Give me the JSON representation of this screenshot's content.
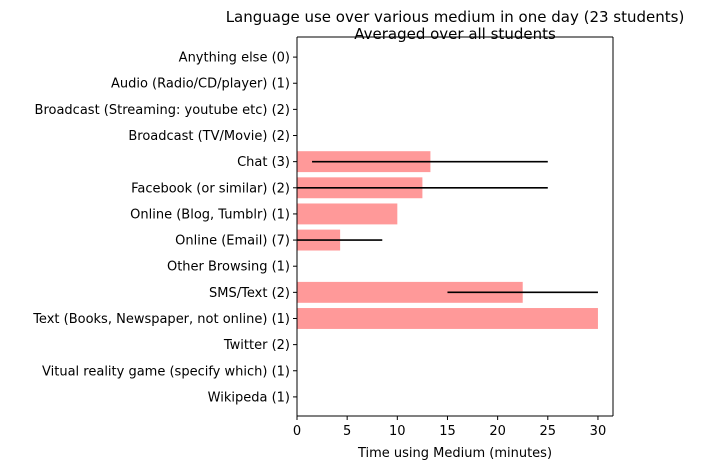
{
  "chart_data": {
    "type": "bar",
    "orientation": "horizontal",
    "title": "Language use over various medium in one day (23 students)",
    "subtitle": "Averaged over all students",
    "xlabel": "Time using Medium (minutes)",
    "ylabel": "",
    "xlim": [
      0,
      31.5
    ],
    "xticks": [
      "0",
      "5",
      "10",
      "15",
      "20",
      "25",
      "30"
    ],
    "grid": false,
    "categories": [
      "Anything else (0)",
      "Audio (Radio/CD/player) (1)",
      "Broadcast (Streaming: youtube etc) (2)",
      "Broadcast (TV/Movie) (2)",
      "Chat (3)",
      "Facebook (or similar) (2)",
      "Online (Blog, Tumblr) (1)",
      "Online (Email) (7)",
      "Other Browsing (1)",
      "SMS/Text (2)",
      "Text (Books, Newspaper, not online) (1)",
      "Twitter (2)",
      "Vitual reality game (specify which) (1)",
      "Wikipeda (1)"
    ],
    "values": [
      0,
      0,
      0,
      0,
      13.3,
      12.5,
      10,
      4.3,
      0,
      22.5,
      30,
      0,
      0,
      0
    ],
    "errors": [
      null,
      null,
      null,
      null,
      [
        1.5,
        25
      ],
      [
        0,
        25
      ],
      null,
      [
        0,
        8.5
      ],
      null,
      [
        15,
        30
      ],
      null,
      null,
      null,
      null
    ],
    "bar_color": "#ff9999",
    "error_color": "#000000"
  }
}
